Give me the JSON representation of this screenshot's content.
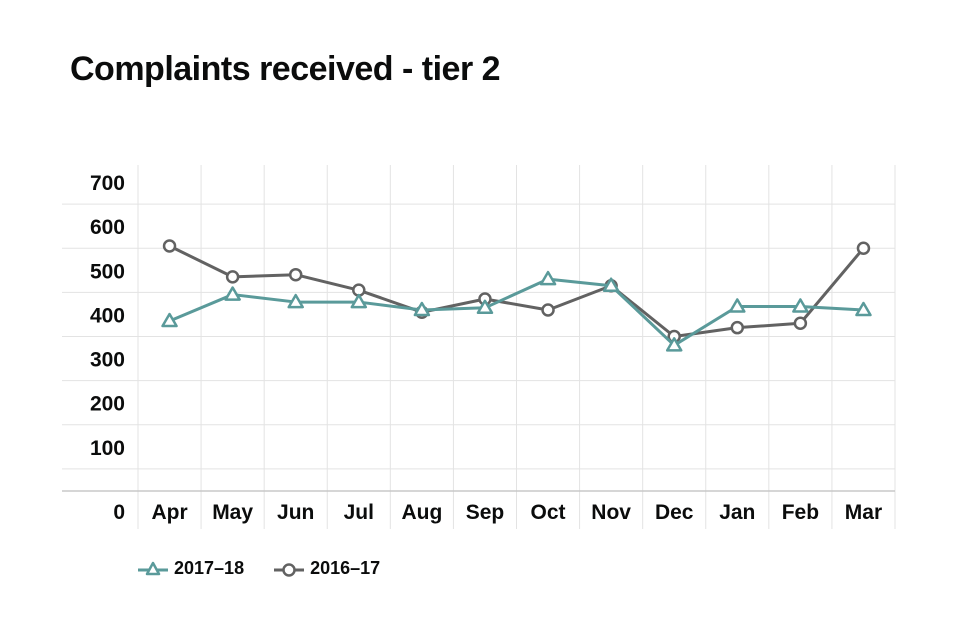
{
  "chart_data": {
    "type": "line",
    "title": "Complaints received - tier 2",
    "xlabel": "",
    "ylabel": "",
    "categories": [
      "Apr",
      "May",
      "Jun",
      "Jul",
      "Aug",
      "Sep",
      "Oct",
      "Nov",
      "Dec",
      "Jan",
      "Feb",
      "Mar"
    ],
    "ylim": [
      0,
      700
    ],
    "yticks": [
      "0",
      "100",
      "200",
      "300",
      "400",
      "500",
      "600",
      "700"
    ],
    "grid": true,
    "legend_position": "bottom-left",
    "series": [
      {
        "name": "2017–18",
        "marker": "triangle",
        "color": "#5a9a9a",
        "values": [
          385,
          445,
          428,
          428,
          410,
          415,
          480,
          465,
          330,
          418,
          418,
          410
        ]
      },
      {
        "name": "2016–17",
        "marker": "circle",
        "color": "#626262",
        "values": [
          555,
          485,
          490,
          455,
          405,
          435,
          410,
          465,
          350,
          370,
          380,
          550
        ]
      }
    ]
  }
}
